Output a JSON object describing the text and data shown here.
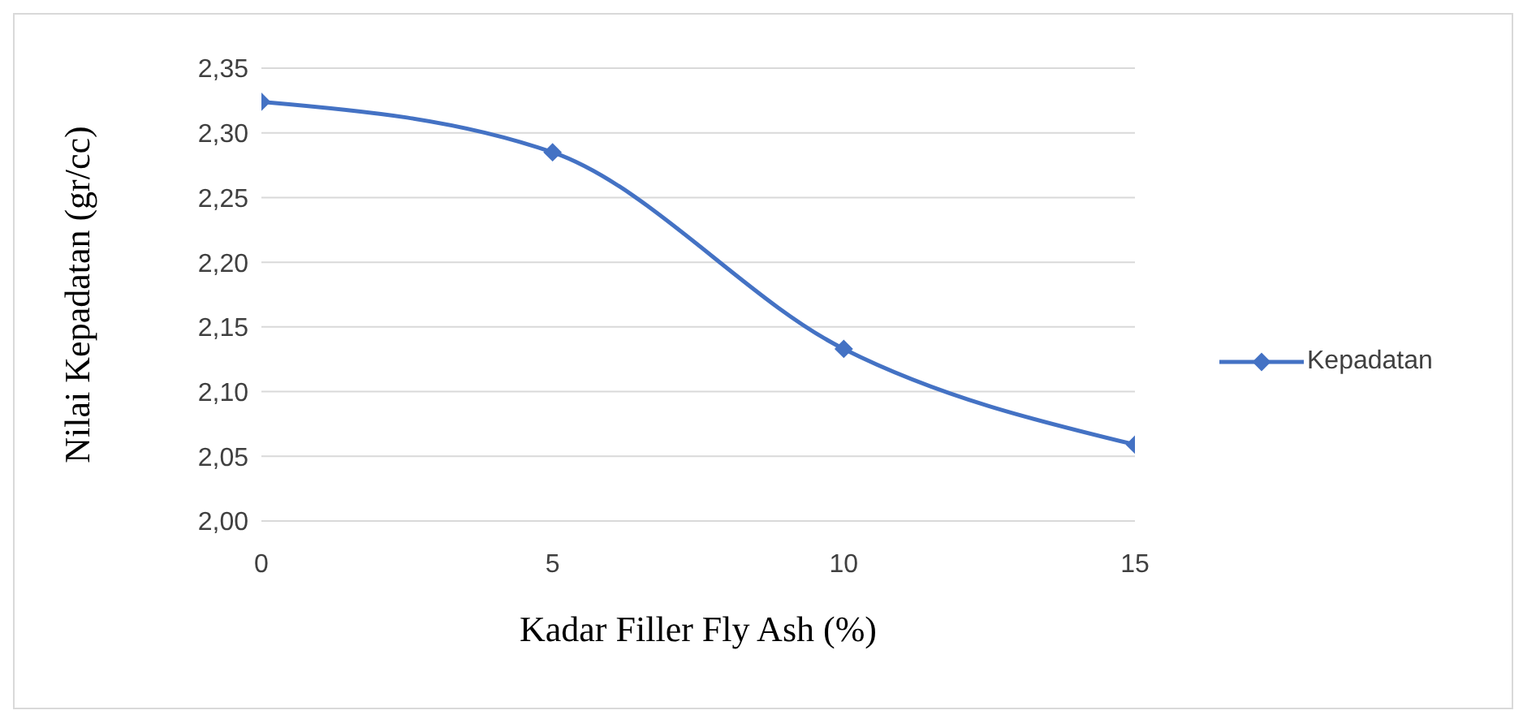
{
  "chart_data": {
    "type": "line",
    "xlabel": "Kadar Filler Fly Ash (%)",
    "ylabel": "Nilai Kepadatan (gr/cc)",
    "x": [
      0,
      5,
      10,
      15
    ],
    "series": [
      {
        "name": "Kepadatan",
        "color": "#4472c4",
        "values": [
          2.324,
          2.285,
          2.133,
          2.059
        ]
      }
    ],
    "xlim": [
      0,
      15
    ],
    "xticks": [
      0,
      5,
      10,
      15
    ],
    "ylim": [
      2.0,
      2.35
    ],
    "yticks": [
      {
        "value": 2.0,
        "label": "2,00"
      },
      {
        "value": 2.05,
        "label": "2,05"
      },
      {
        "value": 2.1,
        "label": "2,10"
      },
      {
        "value": 2.15,
        "label": "2,15"
      },
      {
        "value": 2.2,
        "label": "2,20"
      },
      {
        "value": 2.25,
        "label": "2,25"
      },
      {
        "value": 2.3,
        "label": "2,30"
      },
      {
        "value": 2.35,
        "label": "2,35"
      }
    ],
    "grid": "y",
    "legend": "right",
    "marker": "diamond",
    "line_style": "solid"
  }
}
